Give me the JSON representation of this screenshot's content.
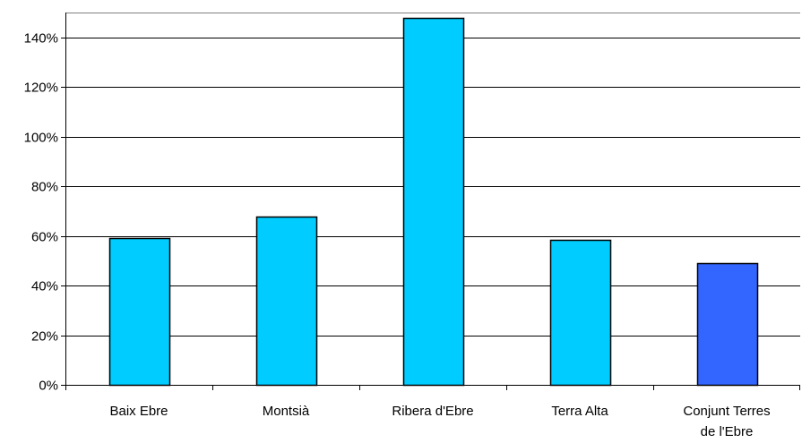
{
  "chart_data": {
    "type": "bar",
    "categories": [
      [
        "Baix Ebre"
      ],
      [
        "Montsià"
      ],
      [
        "Ribera d'Ebre"
      ],
      [
        "Terra Alta"
      ],
      [
        "Conjunt Terres",
        "de l'Ebre"
      ]
    ],
    "values": [
      59,
      68,
      148,
      58.5,
      49
    ],
    "ylim": [
      0,
      140
    ],
    "yticks": [
      "0%",
      "20%",
      "40%",
      "60%",
      "80%",
      "100%",
      "120%",
      "140%"
    ],
    "grid": true,
    "legend": "none",
    "colors": {
      "bar": "#00ccff",
      "highlight_bar": "#3366ff",
      "outline": "#000000",
      "grid": "#000000"
    }
  }
}
